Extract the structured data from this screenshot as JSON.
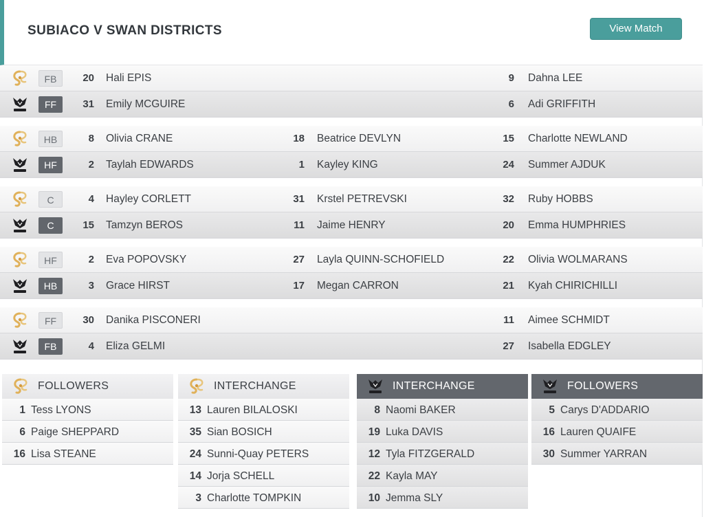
{
  "match": {
    "title": "SUBIACO V SWAN DISTRICTS",
    "view_button": "View Match"
  },
  "colors": {
    "accent": "#4a9e9c",
    "away_badge": "#62666c",
    "subiaco_gold": "#e0b15a"
  },
  "icons": {
    "home": "subiaco-logo-icon",
    "away": "swans-logo-icon"
  },
  "lines": [
    {
      "home": {
        "pos": "FB",
        "players": [
          {
            "num": "20",
            "name": "Hali EPIS"
          },
          {
            "num": "",
            "name": ""
          },
          {
            "num": "9",
            "name": "Dahna LEE"
          }
        ]
      },
      "away": {
        "pos": "FF",
        "players": [
          {
            "num": "31",
            "name": "Emily MCGUIRE"
          },
          {
            "num": "",
            "name": ""
          },
          {
            "num": "6",
            "name": "Adi GRIFFITH"
          }
        ]
      }
    },
    {
      "home": {
        "pos": "HB",
        "players": [
          {
            "num": "8",
            "name": "Olivia CRANE"
          },
          {
            "num": "18",
            "name": "Beatrice DEVLYN"
          },
          {
            "num": "15",
            "name": "Charlotte NEWLAND"
          }
        ]
      },
      "away": {
        "pos": "HF",
        "players": [
          {
            "num": "2",
            "name": "Taylah EDWARDS"
          },
          {
            "num": "1",
            "name": "Kayley KING"
          },
          {
            "num": "24",
            "name": "Summer AJDUK"
          }
        ]
      }
    },
    {
      "home": {
        "pos": "C",
        "players": [
          {
            "num": "4",
            "name": "Hayley CORLETT"
          },
          {
            "num": "31",
            "name": "Krstel PETREVSKI"
          },
          {
            "num": "32",
            "name": "Ruby HOBBS"
          }
        ]
      },
      "away": {
        "pos": "C",
        "players": [
          {
            "num": "15",
            "name": "Tamzyn BEROS"
          },
          {
            "num": "11",
            "name": "Jaime HENRY"
          },
          {
            "num": "20",
            "name": "Emma HUMPHRIES"
          }
        ]
      }
    },
    {
      "home": {
        "pos": "HF",
        "players": [
          {
            "num": "2",
            "name": "Eva POPOVSKY"
          },
          {
            "num": "27",
            "name": "Layla QUINN-SCHOFIELD"
          },
          {
            "num": "22",
            "name": "Olivia WOLMARANS"
          }
        ]
      },
      "away": {
        "pos": "HB",
        "players": [
          {
            "num": "3",
            "name": "Grace HIRST"
          },
          {
            "num": "17",
            "name": "Megan CARRON"
          },
          {
            "num": "21",
            "name": "Kyah CHIRICHILLI"
          }
        ]
      }
    },
    {
      "home": {
        "pos": "FF",
        "players": [
          {
            "num": "30",
            "name": "Danika PISCONERI"
          },
          {
            "num": "",
            "name": ""
          },
          {
            "num": "11",
            "name": "Aimee SCHMIDT"
          }
        ]
      },
      "away": {
        "pos": "FB",
        "players": [
          {
            "num": "4",
            "name": "Eliza GELMI"
          },
          {
            "num": "",
            "name": ""
          },
          {
            "num": "27",
            "name": "Isabella EDGLEY"
          }
        ]
      }
    }
  ],
  "benches": [
    {
      "team": "home",
      "title": "FOLLOWERS",
      "players": [
        {
          "num": "1",
          "name": "Tess LYONS"
        },
        {
          "num": "6",
          "name": "Paige SHEPPARD"
        },
        {
          "num": "16",
          "name": "Lisa STEANE"
        }
      ]
    },
    {
      "team": "home",
      "title": "INTERCHANGE",
      "players": [
        {
          "num": "13",
          "name": "Lauren BILALOSKI"
        },
        {
          "num": "35",
          "name": "Sian BOSICH"
        },
        {
          "num": "24",
          "name": "Sunni-Quay PETERS"
        },
        {
          "num": "14",
          "name": "Jorja SCHELL"
        },
        {
          "num": "3",
          "name": "Charlotte TOMPKIN"
        }
      ]
    },
    {
      "team": "away",
      "title": "INTERCHANGE",
      "players": [
        {
          "num": "8",
          "name": "Naomi BAKER"
        },
        {
          "num": "19",
          "name": "Luka DAVIS"
        },
        {
          "num": "12",
          "name": "Tyla FITZGERALD"
        },
        {
          "num": "22",
          "name": "Kayla MAY"
        },
        {
          "num": "10",
          "name": "Jemma SLY"
        }
      ]
    },
    {
      "team": "away",
      "title": "FOLLOWERS",
      "players": [
        {
          "num": "5",
          "name": "Carys D'ADDARIO"
        },
        {
          "num": "16",
          "name": "Lauren QUAIFE"
        },
        {
          "num": "30",
          "name": "Summer YARRAN"
        }
      ]
    }
  ]
}
